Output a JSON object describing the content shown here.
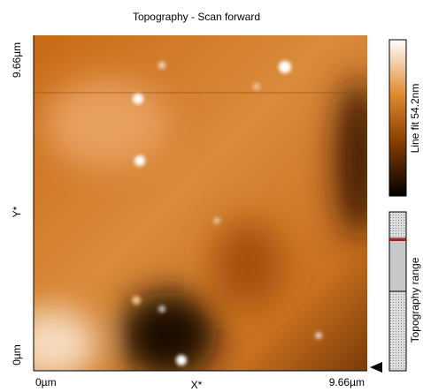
{
  "title": "Topography - Scan forward",
  "x_axis": {
    "label": "X*",
    "start": "0µm",
    "end": "9.66µm"
  },
  "y_axis": {
    "label": "Y*",
    "start": "0µm",
    "end": "9.66µm"
  },
  "colorbar": {
    "label": "Line fit 54.2nm"
  },
  "range_bar": {
    "label": "Topography range"
  }
}
